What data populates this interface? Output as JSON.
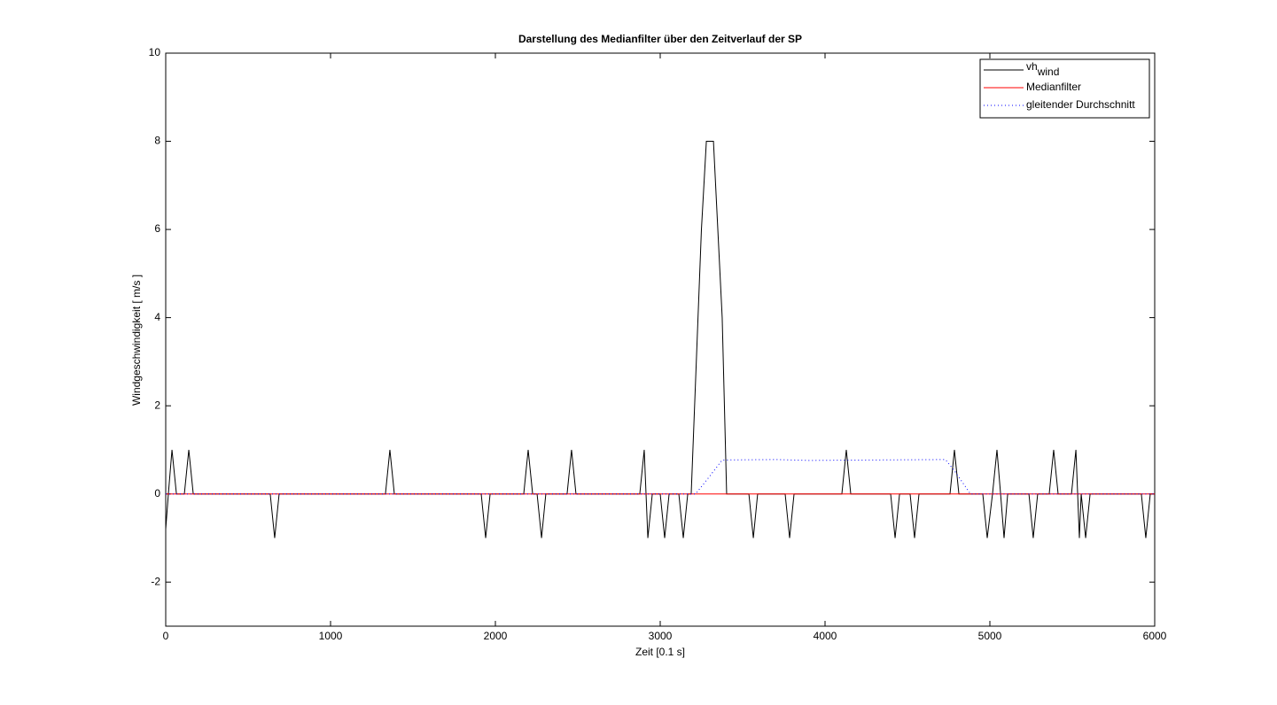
{
  "chart_data": {
    "type": "line",
    "title": "Darstellung des Medianfilter über den Zeitverlauf der SP",
    "xlabel": "Zeit [0.1 s]",
    "ylabel": "Windgeschwindigkeit [ m/s ]",
    "xlim": [
      0,
      6000
    ],
    "ylim": [
      -3,
      10
    ],
    "xticks": [
      0,
      1000,
      2000,
      3000,
      4000,
      5000,
      6000
    ],
    "yticks": [
      -2,
      0,
      2,
      4,
      6,
      8,
      10
    ],
    "legend": "upper right",
    "series": [
      {
        "name": "vh",
        "name_sub": "wind",
        "color": "#000000",
        "style": "solid",
        "x": [
          0,
          16,
          38,
          65,
          113,
          140,
          167,
          634,
          661,
          688,
          1333,
          1360,
          1387,
          1914,
          1941,
          1968,
          2172,
          2199,
          2226,
          2253,
          2280,
          2306,
          2435,
          2462,
          2489,
          2876,
          2903,
          2925,
          2952,
          3000,
          3027,
          3054,
          3113,
          3140,
          3167,
          3188,
          3250,
          3280,
          3323,
          3376,
          3403,
          3538,
          3565,
          3591,
          3758,
          3785,
          3812,
          4102,
          4129,
          4156,
          4398,
          4425,
          4452,
          4516,
          4543,
          4570,
          4758,
          4785,
          4812,
          4957,
          4984,
          5016,
          5043,
          5065,
          5086,
          5108,
          5237,
          5263,
          5290,
          5360,
          5387,
          5414,
          5495,
          5522,
          5543,
          5554,
          5581,
          5608,
          5919,
          5946,
          5973,
          6000
        ],
        "values": [
          -0.8,
          0,
          1,
          0,
          0,
          1,
          0,
          0,
          -1,
          0,
          0,
          1,
          0,
          0,
          -1,
          0,
          0,
          1,
          0,
          0,
          -1,
          0,
          0,
          1,
          0,
          0,
          1,
          -1,
          0,
          0,
          -1,
          0,
          0,
          -1,
          0,
          0,
          6,
          8,
          8,
          4,
          0,
          0,
          -1,
          0,
          0,
          -1,
          0,
          0,
          1,
          0,
          0,
          -1,
          0,
          0,
          -1,
          0,
          0,
          1,
          0,
          0,
          -1,
          0,
          1,
          0,
          -1,
          0,
          0,
          -1,
          0,
          0,
          1,
          0,
          0,
          1,
          -1,
          0,
          -1,
          0,
          0,
          -1,
          0,
          0
        ]
      },
      {
        "name": "Medianfilter",
        "color": "#ff0000",
        "style": "solid",
        "x": [
          0,
          6000
        ],
        "values": [
          0,
          0
        ]
      },
      {
        "name": "gleitender Durchschnitt",
        "color": "#0000ff",
        "style": "dotted",
        "x": [
          0,
          3215,
          3300,
          3376,
          3700,
          3900,
          4300,
          4731,
          4790,
          4882,
          6000
        ],
        "values": [
          0,
          0,
          0.4,
          0.77,
          0.78,
          0.76,
          0.77,
          0.78,
          0.5,
          0,
          0
        ]
      }
    ]
  }
}
